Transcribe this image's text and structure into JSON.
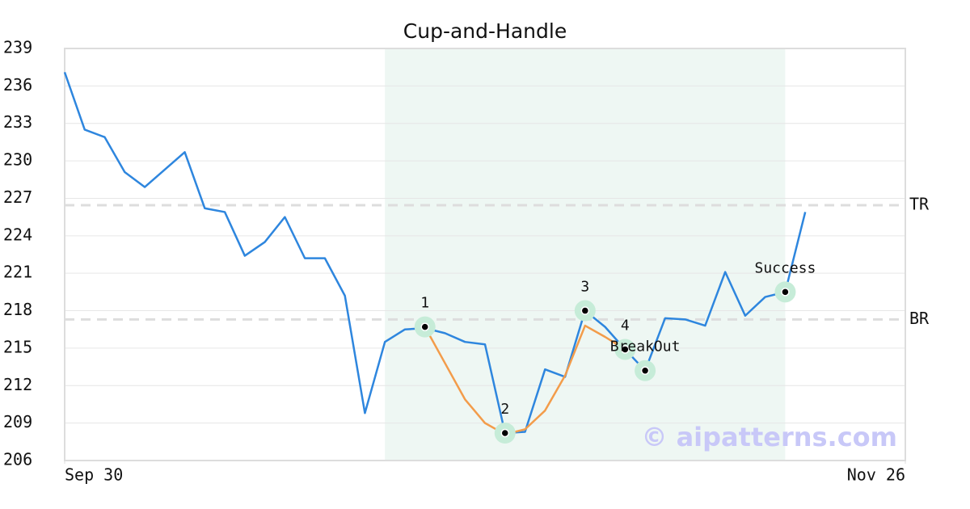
{
  "chart_data": {
    "type": "line",
    "title": "Cup-and-Handle",
    "x": [
      0,
      1,
      2,
      3,
      4,
      5,
      6,
      7,
      8,
      9,
      10,
      11,
      12,
      13,
      14,
      15,
      16,
      17,
      18,
      19,
      20,
      21,
      22,
      23,
      24,
      25,
      26,
      27,
      28,
      29,
      30,
      31,
      32,
      33,
      34,
      35,
      36,
      37
    ],
    "series": [
      {
        "color": "#2e86de",
        "values": [
          237.1,
          232.5,
          231.9,
          229.1,
          227.9,
          229.3,
          230.7,
          226.2,
          225.9,
          222.4,
          223.5,
          225.5,
          222.2,
          222.2,
          219.2,
          209.8,
          215.5,
          216.5,
          216.6,
          216.2,
          215.5,
          215.3,
          208.2,
          208.3,
          213.3,
          212.7,
          218.0,
          216.7,
          214.9,
          213.2,
          217.4,
          217.3,
          216.8,
          221.1,
          217.6,
          219.1,
          219.5,
          225.9
        ]
      },
      {
        "color": "#f39c4a",
        "x": [
          18,
          19,
          20,
          21,
          22,
          23,
          24,
          25,
          26,
          27,
          28
        ],
        "values": [
          216.7,
          213.8,
          210.9,
          209.0,
          208.1,
          208.5,
          210.0,
          212.8,
          216.8,
          215.9,
          214.9
        ]
      }
    ],
    "annotations": [
      {
        "label": "1",
        "x": 18,
        "y": 216.7
      },
      {
        "label": "2",
        "x": 22,
        "y": 208.2
      },
      {
        "label": "3",
        "x": 26,
        "y": 218.0
      },
      {
        "label": "4",
        "x": 28,
        "y": 214.9
      },
      {
        "label": "BreakOut",
        "x": 29,
        "y": 213.2
      },
      {
        "label": "Success",
        "x": 36,
        "y": 219.5
      }
    ],
    "levels": [
      {
        "label": "TR",
        "value": 226.45
      },
      {
        "label": "BR",
        "value": 217.3
      }
    ],
    "highlight_range": [
      16,
      36
    ],
    "highlight_color": "#eef7f3",
    "marker_color": "#c6ecd8",
    "watermark": "© aipatterns.com",
    "xlim": [
      0,
      42
    ],
    "xticks": [
      {
        "value": 0,
        "label": "Sep 30"
      },
      {
        "value": 42,
        "label": "Nov 26"
      }
    ],
    "ylim": [
      206,
      239
    ],
    "yticks": [
      206,
      209,
      212,
      215,
      218,
      221,
      224,
      227,
      230,
      233,
      236,
      239
    ],
    "grid": true
  }
}
